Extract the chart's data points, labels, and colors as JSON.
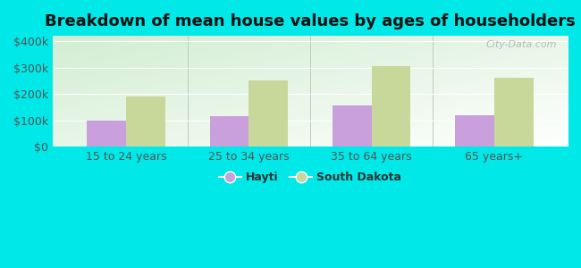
{
  "title": "Breakdown of mean house values by ages of householders",
  "categories": [
    "15 to 24 years",
    "25 to 34 years",
    "35 to 64 years",
    "65 years+"
  ],
  "hayti_values": [
    100000,
    115000,
    155000,
    118000
  ],
  "sd_values": [
    190000,
    250000,
    305000,
    262000
  ],
  "hayti_color": "#c9a0dc",
  "sd_color": "#c8d89a",
  "background_color": "#00e8e8",
  "plot_bg_color": "#e8f5e0",
  "yticks": [
    0,
    100000,
    200000,
    300000,
    400000
  ],
  "ylim": [
    0,
    420000
  ],
  "bar_width": 0.32,
  "title_fontsize": 13,
  "tick_fontsize": 9,
  "legend_fontsize": 9,
  "watermark": "City-Data.com"
}
